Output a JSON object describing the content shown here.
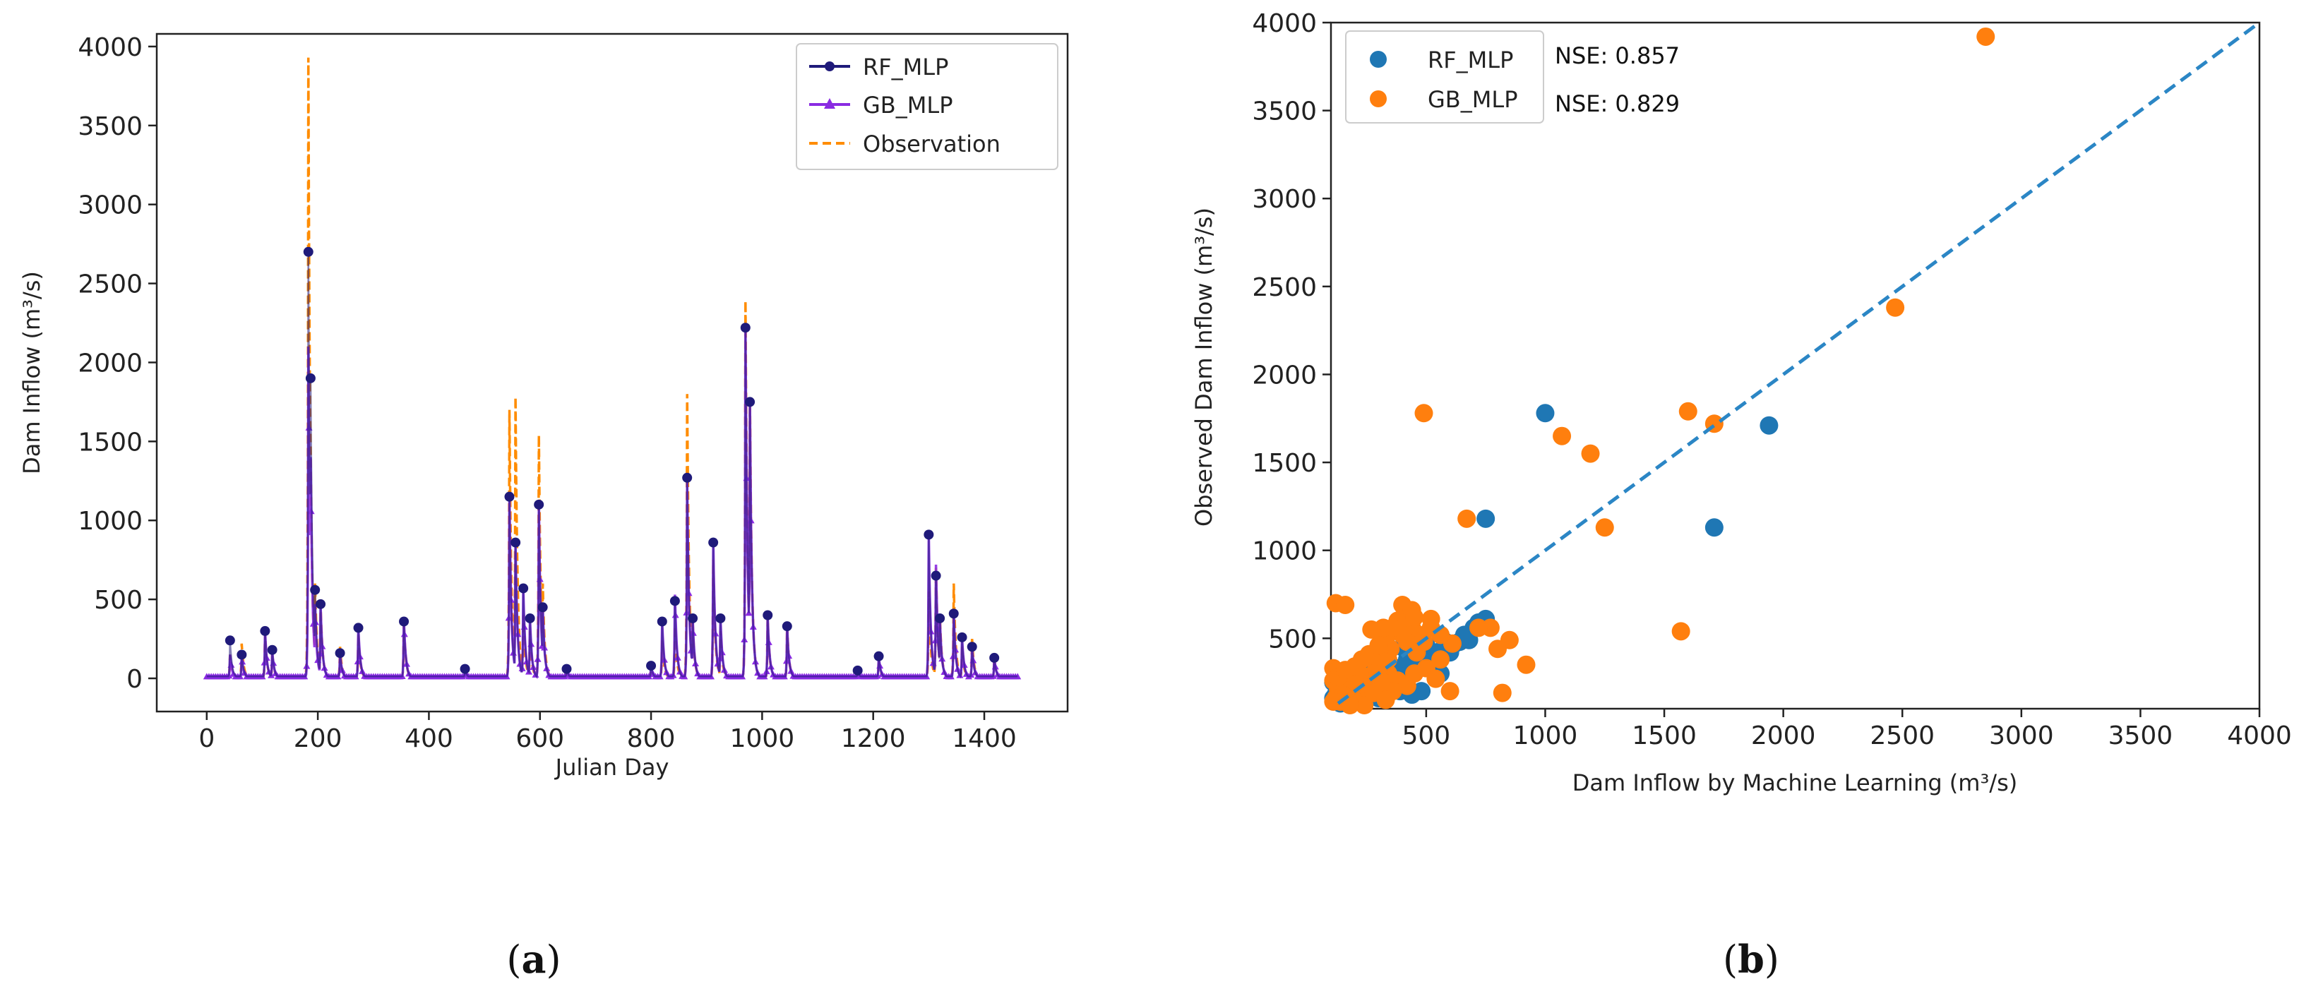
{
  "chart_data": [
    {
      "id": "a",
      "type": "line",
      "panel_label": "(a)",
      "panel_letter": "a",
      "xlabel": "Julian Day",
      "ylabel": "Dam Inflow (m³/s)",
      "xlim": [
        -90,
        1550
      ],
      "ylim": [
        -210,
        4080
      ],
      "xticks": [
        0,
        200,
        400,
        600,
        800,
        1000,
        1200,
        1400
      ],
      "yticks": [
        0,
        500,
        1000,
        1500,
        2000,
        2500,
        3000,
        3500,
        4000
      ],
      "legend": [
        "RF_MLP",
        "GB_MLP",
        "Observation"
      ],
      "legend_position": "top-right",
      "colors": {
        "RF_MLP": "#1f1a7a",
        "GB_MLP": "#8a2be2",
        "Observation": "#ff8c00"
      },
      "peaks": [
        [
          42,
          240,
          150,
          150
        ],
        [
          63,
          150,
          140,
          220
        ],
        [
          105,
          300,
          300,
          280
        ],
        [
          118,
          180,
          170,
          160
        ],
        [
          183,
          2700,
          2100,
          3930
        ],
        [
          187,
          1900,
          1400,
          1450
        ],
        [
          195,
          560,
          470,
          600
        ],
        [
          205,
          470,
          470,
          470
        ],
        [
          240,
          160,
          160,
          200
        ],
        [
          273,
          320,
          320,
          280
        ],
        [
          355,
          360,
          370,
          350
        ],
        [
          465,
          60,
          60,
          50
        ],
        [
          545,
          1150,
          1150,
          1700
        ],
        [
          556,
          860,
          860,
          1780
        ],
        [
          570,
          570,
          570,
          400
        ],
        [
          582,
          380,
          380,
          300
        ],
        [
          598,
          1100,
          1100,
          1540
        ],
        [
          605,
          450,
          450,
          600
        ],
        [
          648,
          60,
          60,
          50
        ],
        [
          800,
          80,
          80,
          90
        ],
        [
          820,
          360,
          360,
          240
        ],
        [
          843,
          490,
          530,
          330
        ],
        [
          865,
          1270,
          1250,
          1800
        ],
        [
          875,
          380,
          380,
          360
        ],
        [
          912,
          860,
          870,
          750
        ],
        [
          925,
          380,
          380,
          300
        ],
        [
          970,
          2220,
          2220,
          2390
        ],
        [
          978,
          1750,
          1750,
          1780
        ],
        [
          1010,
          400,
          400,
          380
        ],
        [
          1045,
          330,
          330,
          330
        ],
        [
          1172,
          50,
          50,
          60
        ],
        [
          1210,
          140,
          140,
          120
        ],
        [
          1300,
          910,
          910,
          550
        ],
        [
          1313,
          650,
          720,
          700
        ],
        [
          1320,
          380,
          380,
          400
        ],
        [
          1345,
          410,
          420,
          600
        ],
        [
          1360,
          260,
          260,
          200
        ],
        [
          1378,
          200,
          200,
          250
        ],
        [
          1418,
          130,
          130,
          120
        ]
      ]
    },
    {
      "id": "b",
      "type": "scatter",
      "panel_label": "(b)",
      "panel_letter": "b",
      "xlabel": "Dam Inflow by Machine Learning (m³/s)",
      "ylabel": "Observed Dam Inflow (m³/s)",
      "xlim": [
        100,
        4000
      ],
      "ylim": [
        100,
        4000
      ],
      "xticks": [
        500,
        1000,
        1500,
        2000,
        2500,
        3000,
        3500,
        4000
      ],
      "yticks": [
        500,
        1000,
        1500,
        2000,
        2500,
        3000,
        3500,
        4000
      ],
      "legend_position": "top-left",
      "series": [
        {
          "name": "RF_MLP",
          "color": "#1f77b4",
          "nse_label": "NSE:",
          "nse": "0.857",
          "points": [
            [
              1000,
              1780
            ],
            [
              1940,
              1710
            ],
            [
              1710,
              1130
            ],
            [
              750,
              1180
            ],
            [
              750,
              610
            ],
            [
              700,
              560
            ],
            [
              680,
              490
            ],
            [
              640,
              480
            ],
            [
              490,
              350
            ],
            [
              440,
              300
            ],
            [
              400,
              450
            ],
            [
              330,
              480
            ],
            [
              310,
              400
            ],
            [
              280,
              260
            ],
            [
              250,
              230
            ],
            [
              230,
              200
            ],
            [
              210,
              190
            ],
            [
              190,
              170
            ],
            [
              170,
              160
            ],
            [
              150,
              140
            ],
            [
              140,
              130
            ],
            [
              120,
              180
            ],
            [
              130,
              230
            ],
            [
              160,
              250
            ],
            [
              200,
              220
            ],
            [
              260,
              170
            ],
            [
              300,
              160
            ],
            [
              350,
              300
            ],
            [
              380,
              330
            ],
            [
              420,
              380
            ],
            [
              460,
              520
            ],
            [
              500,
              460
            ],
            [
              480,
              200
            ],
            [
              440,
              180
            ],
            [
              520,
              340
            ],
            [
              560,
              300
            ],
            [
              600,
              420
            ],
            [
              620,
              470
            ],
            [
              360,
              250
            ],
            [
              270,
              300
            ],
            [
              230,
              290
            ],
            [
              180,
              280
            ],
            [
              110,
              160
            ],
            [
              110,
              250
            ],
            [
              130,
              300
            ],
            [
              150,
              200
            ],
            [
              320,
              210
            ],
            [
              390,
              200
            ],
            [
              410,
              600
            ],
            [
              470,
              380
            ],
            [
              540,
              420
            ],
            [
              580,
              480
            ],
            [
              660,
              520
            ],
            [
              720,
              590
            ]
          ]
        },
        {
          "name": "GB_MLP",
          "color": "#ff7f0e",
          "nse_label": "NSE:",
          "nse": "0.829",
          "points": [
            [
              2850,
              3920
            ],
            [
              2470,
              2380
            ],
            [
              1600,
              1790
            ],
            [
              1710,
              1720
            ],
            [
              1070,
              1650
            ],
            [
              1190,
              1550
            ],
            [
              490,
              1780
            ],
            [
              1250,
              1130
            ],
            [
              670,
              1180
            ],
            [
              1570,
              540
            ],
            [
              120,
              700
            ],
            [
              160,
              690
            ],
            [
              400,
              690
            ],
            [
              440,
              660
            ],
            [
              920,
              350
            ],
            [
              850,
              490
            ],
            [
              800,
              440
            ],
            [
              820,
              190
            ],
            [
              770,
              560
            ],
            [
              720,
              560
            ],
            [
              610,
              470
            ],
            [
              600,
              200
            ],
            [
              560,
              380
            ],
            [
              520,
              610
            ],
            [
              520,
              560
            ],
            [
              490,
              480
            ],
            [
              470,
              520
            ],
            [
              460,
              420
            ],
            [
              440,
              560
            ],
            [
              420,
              480
            ],
            [
              400,
              520
            ],
            [
              380,
              600
            ],
            [
              360,
              560
            ],
            [
              350,
              440
            ],
            [
              340,
              380
            ],
            [
              330,
              500
            ],
            [
              320,
              560
            ],
            [
              300,
              420
            ],
            [
              290,
              360
            ],
            [
              280,
              300
            ],
            [
              270,
              550
            ],
            [
              260,
              260
            ],
            [
              250,
              240
            ],
            [
              240,
              220
            ],
            [
              230,
              200
            ],
            [
              220,
              300
            ],
            [
              210,
              180
            ],
            [
              200,
              260
            ],
            [
              190,
              160
            ],
            [
              180,
              200
            ],
            [
              170,
              150
            ],
            [
              160,
              260
            ],
            [
              150,
              180
            ],
            [
              140,
              140
            ],
            [
              130,
              210
            ],
            [
              120,
              160
            ],
            [
              110,
              140
            ],
            [
              110,
              260
            ],
            [
              110,
              330
            ],
            [
              130,
              280
            ],
            [
              160,
              320
            ],
            [
              200,
              340
            ],
            [
              230,
              380
            ],
            [
              260,
              410
            ],
            [
              300,
              460
            ],
            [
              340,
              300
            ],
            [
              380,
              260
            ],
            [
              420,
              230
            ],
            [
              450,
              300
            ],
            [
              500,
              330
            ],
            [
              540,
              270
            ],
            [
              560,
              520
            ],
            [
              450,
              620
            ],
            [
              320,
              250
            ],
            [
              280,
              190
            ],
            [
              360,
              200
            ],
            [
              240,
              120
            ],
            [
              180,
              120
            ],
            [
              330,
              150
            ]
          ]
        }
      ],
      "reference_line": "1:1 dashed"
    }
  ]
}
